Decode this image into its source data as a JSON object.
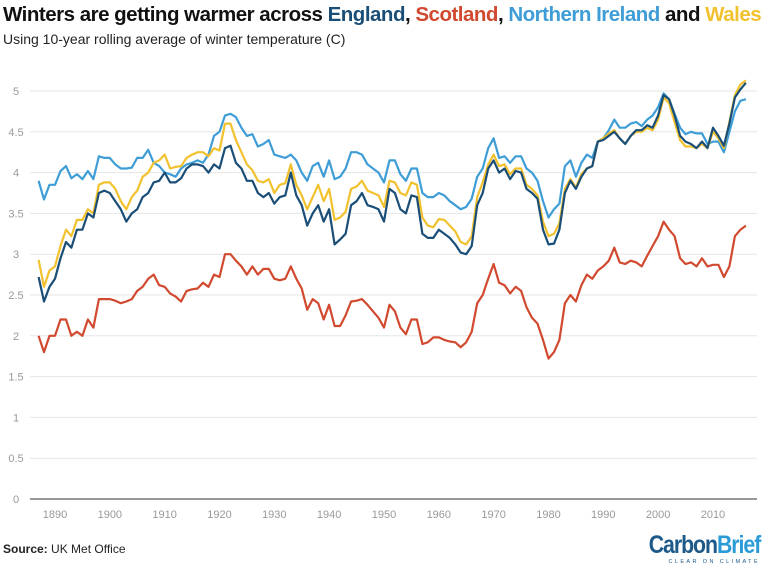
{
  "title": {
    "prefix": "Winters are getting warmer across ",
    "england": "England",
    "comma1": ", ",
    "scotland": "Scotland",
    "comma2": ", ",
    "northern_ireland": "Northern Ireland",
    "and": " and ",
    "wales": "Wales"
  },
  "subtitle": "Using 10-year rolling average of winter temperature (C)",
  "source": {
    "label": "Source:",
    "text": " UK Met Office"
  },
  "logo": {
    "main": "CarbonBrief",
    "tagline": "CLEAR ON CLIMATE"
  },
  "chart_data": {
    "type": "line",
    "title": "Winters are getting warmer across England, Scotland, Northern Ireland and Wales",
    "subtitle": "Using 10-year rolling average of winter temperature (C)",
    "xlabel": "",
    "ylabel": "",
    "xlim": [
      1887,
      2016
    ],
    "ylim": [
      0,
      5
    ],
    "x_ticks": [
      1890,
      1900,
      1910,
      1920,
      1930,
      1940,
      1950,
      1960,
      1970,
      1980,
      1990,
      2000,
      2010
    ],
    "y_ticks": [
      0,
      0.5,
      1,
      1.5,
      2,
      2.5,
      3,
      3.5,
      4,
      4.5,
      5
    ],
    "y_tick_labels": [
      "0",
      "0.5",
      "1",
      "1.5",
      "2",
      "2.5",
      "3",
      "3.5",
      "4",
      "4.5",
      "5"
    ],
    "grid": "horizontal",
    "legend": "in title",
    "x_start": 1887,
    "x_step": 1,
    "series": [
      {
        "name": "Scotland",
        "color": "#d1492f",
        "values": [
          2.0,
          1.8,
          2.0,
          2.0,
          2.2,
          2.2,
          2.0,
          2.05,
          2.0,
          2.2,
          2.1,
          2.45,
          2.45,
          2.45,
          2.43,
          2.4,
          2.42,
          2.45,
          2.55,
          2.6,
          2.7,
          2.75,
          2.62,
          2.6,
          2.52,
          2.48,
          2.42,
          2.55,
          2.57,
          2.58,
          2.65,
          2.6,
          2.75,
          2.72,
          3.0,
          3.0,
          2.92,
          2.85,
          2.75,
          2.85,
          2.75,
          2.82,
          2.82,
          2.7,
          2.68,
          2.7,
          2.85,
          2.7,
          2.58,
          2.32,
          2.45,
          2.4,
          2.2,
          2.38,
          2.12,
          2.12,
          2.25,
          2.42,
          2.43,
          2.45,
          2.38,
          2.3,
          2.22,
          2.1,
          2.38,
          2.3,
          2.1,
          2.02,
          2.2,
          2.2,
          1.9,
          1.92,
          1.98,
          1.98,
          1.95,
          1.93,
          1.92,
          1.86,
          1.92,
          2.05,
          2.4,
          2.5,
          2.7,
          2.88,
          2.65,
          2.62,
          2.52,
          2.6,
          2.55,
          2.35,
          2.22,
          2.15,
          1.95,
          1.72,
          1.8,
          1.95,
          2.4,
          2.5,
          2.42,
          2.62,
          2.75,
          2.7,
          2.8,
          2.85,
          2.92,
          3.08,
          2.9,
          2.88,
          2.92,
          2.9,
          2.85,
          2.98,
          3.1,
          3.22,
          3.4,
          3.3,
          3.22,
          2.95,
          2.88,
          2.9,
          2.85,
          2.95,
          2.85,
          2.87,
          2.87,
          2.72,
          2.85,
          3.22,
          3.3,
          3.35
        ]
      },
      {
        "name": "Northern Ireland",
        "color": "#3e9dd6",
        "values": [
          3.9,
          3.67,
          3.85,
          3.85,
          4.02,
          4.08,
          3.93,
          3.98,
          3.92,
          4.02,
          3.92,
          4.2,
          4.18,
          4.18,
          4.1,
          4.05,
          4.05,
          4.06,
          4.18,
          4.18,
          4.28,
          4.12,
          4.08,
          4.0,
          3.98,
          3.95,
          4.05,
          4.1,
          4.12,
          4.15,
          4.12,
          4.22,
          4.45,
          4.5,
          4.7,
          4.72,
          4.68,
          4.55,
          4.45,
          4.47,
          4.32,
          4.35,
          4.4,
          4.22,
          4.2,
          4.18,
          4.22,
          4.15,
          4.0,
          3.9,
          4.08,
          4.12,
          3.95,
          4.15,
          3.92,
          3.95,
          4.05,
          4.25,
          4.25,
          4.22,
          4.1,
          4.05,
          4.0,
          3.88,
          4.15,
          4.15,
          3.98,
          3.9,
          4.05,
          4.05,
          3.75,
          3.7,
          3.7,
          3.75,
          3.72,
          3.65,
          3.6,
          3.55,
          3.58,
          3.68,
          3.95,
          4.05,
          4.3,
          4.42,
          4.18,
          4.2,
          4.12,
          4.2,
          4.2,
          4.05,
          4.0,
          3.9,
          3.65,
          3.45,
          3.55,
          3.62,
          4.08,
          4.15,
          3.95,
          4.12,
          4.22,
          4.18,
          4.38,
          4.42,
          4.52,
          4.65,
          4.55,
          4.55,
          4.6,
          4.62,
          4.57,
          4.65,
          4.7,
          4.8,
          4.97,
          4.9,
          4.72,
          4.55,
          4.47,
          4.5,
          4.48,
          4.48,
          4.35,
          4.38,
          4.38,
          4.25,
          4.5,
          4.75,
          4.88,
          4.9
        ]
      },
      {
        "name": "Wales",
        "color": "#f2c12e",
        "values": [
          2.93,
          2.6,
          2.8,
          2.85,
          3.1,
          3.3,
          3.22,
          3.42,
          3.42,
          3.55,
          3.5,
          3.85,
          3.88,
          3.88,
          3.8,
          3.65,
          3.55,
          3.7,
          3.78,
          3.95,
          4.0,
          4.12,
          4.15,
          4.22,
          4.05,
          4.07,
          4.08,
          4.18,
          4.22,
          4.25,
          4.25,
          4.2,
          4.3,
          4.27,
          4.6,
          4.6,
          4.4,
          4.25,
          4.1,
          4.03,
          3.9,
          3.88,
          3.92,
          3.75,
          3.85,
          3.87,
          4.1,
          3.85,
          3.72,
          3.55,
          3.7,
          3.85,
          3.65,
          3.8,
          3.42,
          3.45,
          3.52,
          3.8,
          3.83,
          3.9,
          3.78,
          3.75,
          3.72,
          3.58,
          3.9,
          3.88,
          3.75,
          3.72,
          3.88,
          3.85,
          3.45,
          3.35,
          3.33,
          3.43,
          3.42,
          3.35,
          3.28,
          3.15,
          3.12,
          3.22,
          3.7,
          3.88,
          4.1,
          4.22,
          4.08,
          4.1,
          3.98,
          4.05,
          4.05,
          3.85,
          3.8,
          3.72,
          3.4,
          3.22,
          3.25,
          3.38,
          3.8,
          3.92,
          3.82,
          3.98,
          4.05,
          4.08,
          4.38,
          4.42,
          4.48,
          4.52,
          4.42,
          4.35,
          4.45,
          4.5,
          4.5,
          4.55,
          4.52,
          4.65,
          4.92,
          4.85,
          4.62,
          4.4,
          4.32,
          4.32,
          4.3,
          4.35,
          4.3,
          4.5,
          4.42,
          4.3,
          4.62,
          4.95,
          5.08,
          5.13
        ]
      },
      {
        "name": "England",
        "color": "#1b4e77",
        "values": [
          2.72,
          2.42,
          2.6,
          2.7,
          2.95,
          3.15,
          3.08,
          3.3,
          3.3,
          3.5,
          3.45,
          3.75,
          3.78,
          3.75,
          3.65,
          3.55,
          3.4,
          3.5,
          3.55,
          3.7,
          3.75,
          3.88,
          3.9,
          4.0,
          3.88,
          3.88,
          3.93,
          4.05,
          4.1,
          4.1,
          4.08,
          4.0,
          4.1,
          4.05,
          4.3,
          4.33,
          4.12,
          4.05,
          3.9,
          3.9,
          3.75,
          3.7,
          3.75,
          3.62,
          3.7,
          3.72,
          4.0,
          3.72,
          3.6,
          3.35,
          3.5,
          3.6,
          3.4,
          3.55,
          3.12,
          3.18,
          3.25,
          3.6,
          3.65,
          3.75,
          3.6,
          3.58,
          3.55,
          3.4,
          3.8,
          3.75,
          3.55,
          3.5,
          3.72,
          3.7,
          3.25,
          3.2,
          3.2,
          3.3,
          3.25,
          3.2,
          3.12,
          3.02,
          3.0,
          3.1,
          3.6,
          3.75,
          4.05,
          4.15,
          4.0,
          4.05,
          3.92,
          4.02,
          4.0,
          3.8,
          3.75,
          3.68,
          3.3,
          3.12,
          3.13,
          3.3,
          3.75,
          3.9,
          3.8,
          3.95,
          4.05,
          4.08,
          4.38,
          4.4,
          4.45,
          4.5,
          4.42,
          4.35,
          4.45,
          4.52,
          4.52,
          4.58,
          4.55,
          4.7,
          4.95,
          4.9,
          4.7,
          4.45,
          4.38,
          4.35,
          4.3,
          4.38,
          4.3,
          4.55,
          4.45,
          4.33,
          4.6,
          4.92,
          5.02,
          5.1
        ]
      }
    ]
  }
}
